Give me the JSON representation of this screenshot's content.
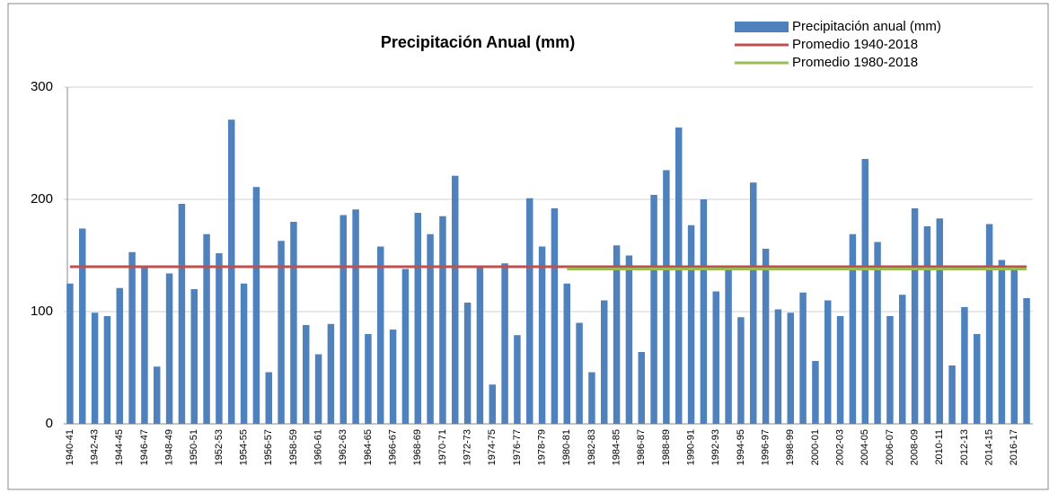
{
  "chart_data": {
    "type": "bar",
    "title": "Precipitación Anual (mm)",
    "categories": [
      "1940-41",
      null,
      "1942-43",
      null,
      "1944-45",
      null,
      "1946-47",
      null,
      "1948-49",
      null,
      "1950-51",
      null,
      "1952-53",
      null,
      "1954-55",
      null,
      "1956-57",
      null,
      "1958-59",
      null,
      "1960-61",
      null,
      "1962-63",
      null,
      "1964-65",
      null,
      "1966-67",
      null,
      "1968-69",
      null,
      "1970-71",
      null,
      "1972-73",
      null,
      "1974-75",
      null,
      "1976-77",
      null,
      "1978-79",
      null,
      "1980-81",
      null,
      "1982-83",
      null,
      "1984-85",
      null,
      "1986-87",
      null,
      "1988-89",
      null,
      "1990-91",
      null,
      "1992-93",
      null,
      "1994-95",
      null,
      "1996-97",
      null,
      "1998-99",
      null,
      "2000-01",
      null,
      "2002-03",
      null,
      "2004-05",
      null,
      "2006-07",
      null,
      "2008-09",
      null,
      "2010-11",
      null,
      "2012-13",
      null,
      "2014-15",
      null,
      "2016-17",
      null
    ],
    "series": [
      {
        "name": "Precipitación anual (mm)",
        "type": "bar",
        "color": "#4f81bd",
        "values": [
          125,
          174,
          99,
          96,
          121,
          153,
          139,
          51,
          134,
          196,
          120,
          169,
          152,
          271,
          125,
          211,
          46,
          163,
          180,
          88,
          62,
          89,
          186,
          191,
          80,
          158,
          84,
          138,
          188,
          169,
          185,
          221,
          108,
          139,
          35,
          143,
          79,
          201,
          158,
          192,
          125,
          90,
          46,
          110,
          159,
          150,
          64,
          204,
          226,
          264,
          177,
          200,
          118,
          137,
          95,
          215,
          156,
          102,
          99,
          117,
          56,
          110,
          96,
          169,
          236,
          162,
          96,
          115,
          192,
          176,
          183,
          52,
          104,
          80,
          178,
          146,
          141,
          112
        ]
      },
      {
        "name": "Promedio 1940-2018",
        "type": "line",
        "color": "#c0504d",
        "values": [
          140,
          140,
          140,
          140,
          140,
          140,
          140,
          140,
          140,
          140,
          140,
          140,
          140,
          140,
          140,
          140,
          140,
          140,
          140,
          140,
          140,
          140,
          140,
          140,
          140,
          140,
          140,
          140,
          140,
          140,
          140,
          140,
          140,
          140,
          140,
          140,
          140,
          140,
          140,
          140,
          140,
          140,
          140,
          140,
          140,
          140,
          140,
          140,
          140,
          140,
          140,
          140,
          140,
          140,
          140,
          140,
          140,
          140,
          140,
          140,
          140,
          140,
          140,
          140,
          140,
          140,
          140,
          140,
          140,
          140,
          140,
          140,
          140,
          140,
          140,
          140,
          140,
          140
        ]
      },
      {
        "name": "Promedio 1980-2018",
        "type": "line",
        "color": "#9bbb59",
        "values": [
          null,
          null,
          null,
          null,
          null,
          null,
          null,
          null,
          null,
          null,
          null,
          null,
          null,
          null,
          null,
          null,
          null,
          null,
          null,
          null,
          null,
          null,
          null,
          null,
          null,
          null,
          null,
          null,
          null,
          null,
          null,
          null,
          null,
          null,
          null,
          null,
          null,
          null,
          null,
          null,
          138,
          138,
          138,
          138,
          138,
          138,
          138,
          138,
          138,
          138,
          138,
          138,
          138,
          138,
          138,
          138,
          138,
          138,
          138,
          138,
          138,
          138,
          138,
          138,
          138,
          138,
          138,
          138,
          138,
          138,
          138,
          138,
          138,
          138,
          138,
          138,
          138,
          138
        ]
      }
    ],
    "ylim": [
      0,
      300
    ],
    "yticks": [
      0,
      100,
      200,
      300
    ],
    "grid": true,
    "legend": "top-right"
  }
}
